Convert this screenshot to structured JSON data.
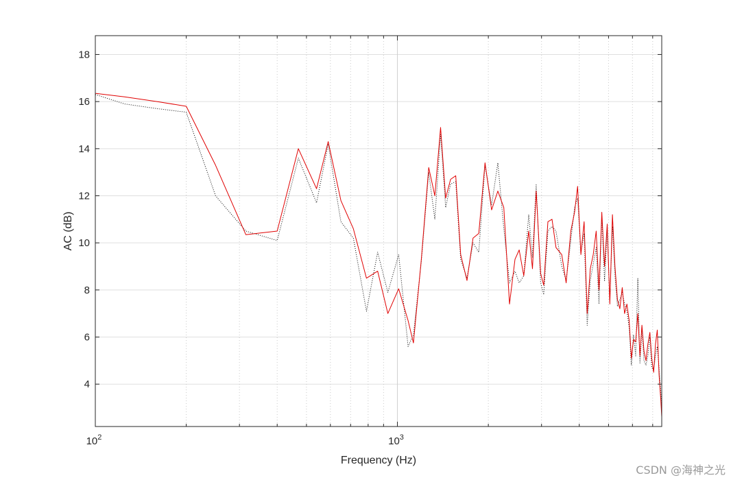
{
  "chart_data": {
    "type": "line",
    "xscale": "log",
    "xlim": [
      100,
      7500
    ],
    "ylim": [
      2.2,
      18.8
    ],
    "xlabel": "Frequency (Hz)",
    "ylabel": "AC (dB)",
    "yticks": [
      4,
      6,
      8,
      10,
      12,
      14,
      16,
      18
    ],
    "xticks_major": [
      {
        "value": 100,
        "base": "10",
        "exp": "2"
      },
      {
        "value": 1000,
        "base": "10",
        "exp": "3"
      }
    ],
    "grid": true,
    "series": [
      {
        "style": "solid",
        "color": "#e00000",
        "x": [
          100,
          125,
          160,
          200,
          250,
          315,
          400,
          470,
          540,
          590,
          650,
          715,
          790,
          860,
          930,
          1010,
          1085,
          1130,
          1200,
          1270,
          1330,
          1390,
          1445,
          1500,
          1560,
          1620,
          1700,
          1780,
          1860,
          1950,
          2050,
          2150,
          2250,
          2350,
          2450,
          2530,
          2620,
          2720,
          2800,
          2880,
          2980,
          3050,
          3150,
          3250,
          3350,
          3500,
          3620,
          3750,
          3860,
          3950,
          4050,
          4150,
          4250,
          4350,
          4450,
          4550,
          4650,
          4750,
          4850,
          4950,
          5050,
          5150,
          5250,
          5350,
          5450,
          5550,
          5650,
          5750,
          5850,
          5950,
          6050,
          6150,
          6250,
          6350,
          6450,
          6550,
          6650,
          6750,
          6850,
          6950,
          7050,
          7150,
          7250,
          7350,
          7450,
          7500
        ],
        "y": [
          16.35,
          16.2,
          16.0,
          15.8,
          13.3,
          10.35,
          10.5,
          14.0,
          12.3,
          14.3,
          11.8,
          10.6,
          8.5,
          8.8,
          7.0,
          8.05,
          6.7,
          5.75,
          9.3,
          13.2,
          12.0,
          14.9,
          11.9,
          12.7,
          12.85,
          9.5,
          8.4,
          10.2,
          10.4,
          13.4,
          11.4,
          12.2,
          11.5,
          7.4,
          9.3,
          9.7,
          8.6,
          10.5,
          8.9,
          12.2,
          8.7,
          8.2,
          10.9,
          11.0,
          9.8,
          9.5,
          8.3,
          10.5,
          11.3,
          12.4,
          9.5,
          10.9,
          7.0,
          8.9,
          9.5,
          10.5,
          8.0,
          11.3,
          9.0,
          10.8,
          7.4,
          11.2,
          9.0,
          7.6,
          7.2,
          8.1,
          7.0,
          7.4,
          6.7,
          5.1,
          5.9,
          5.8,
          7.0,
          5.2,
          6.5,
          5.4,
          5.0,
          5.7,
          6.2,
          5.1,
          4.5,
          5.7,
          6.3,
          4.4,
          3.3,
          2.6
        ]
      },
      {
        "style": "dotted",
        "color": "#000000",
        "x": [
          100,
          125,
          160,
          200,
          250,
          315,
          400,
          470,
          540,
          590,
          650,
          715,
          790,
          860,
          930,
          1010,
          1085,
          1130,
          1200,
          1270,
          1330,
          1390,
          1445,
          1500,
          1560,
          1620,
          1700,
          1780,
          1860,
          1950,
          2050,
          2150,
          2250,
          2350,
          2450,
          2530,
          2620,
          2720,
          2800,
          2880,
          2980,
          3050,
          3150,
          3250,
          3350,
          3500,
          3620,
          3750,
          3860,
          3950,
          4050,
          4150,
          4250,
          4350,
          4450,
          4550,
          4650,
          4750,
          4850,
          4950,
          5050,
          5150,
          5250,
          5350,
          5450,
          5550,
          5650,
          5750,
          5850,
          5950,
          6050,
          6150,
          6250,
          6350,
          6450,
          6550,
          6650,
          6750,
          6850,
          6950,
          7050,
          7150,
          7250,
          7350,
          7450,
          7500
        ],
        "y": [
          16.3,
          15.9,
          15.7,
          15.55,
          12.0,
          10.5,
          10.1,
          13.6,
          11.7,
          14.2,
          10.9,
          10.2,
          7.1,
          9.6,
          7.9,
          9.5,
          5.6,
          6.1,
          9.2,
          13.0,
          11.0,
          14.6,
          11.5,
          12.5,
          12.6,
          9.3,
          8.5,
          10.0,
          9.6,
          13.3,
          11.6,
          13.4,
          10.6,
          8.3,
          8.8,
          8.3,
          8.6,
          11.2,
          9.4,
          12.5,
          8.3,
          7.8,
          10.5,
          10.7,
          10.5,
          9.0,
          8.4,
          10.1,
          11.5,
          11.9,
          9.6,
          10.4,
          6.5,
          8.4,
          9.1,
          9.8,
          7.4,
          11.1,
          8.4,
          10.5,
          7.6,
          10.7,
          8.6,
          7.3,
          7.6,
          7.9,
          7.4,
          7.1,
          6.4,
          4.8,
          6.1,
          5.2,
          8.5,
          4.9,
          6.4,
          5.0,
          4.8,
          5.2,
          6.0,
          4.7,
          4.6,
          5.2,
          5.6,
          4.7,
          3.6,
          2.9
        ]
      }
    ]
  },
  "watermark": "CSDN @海神之光"
}
